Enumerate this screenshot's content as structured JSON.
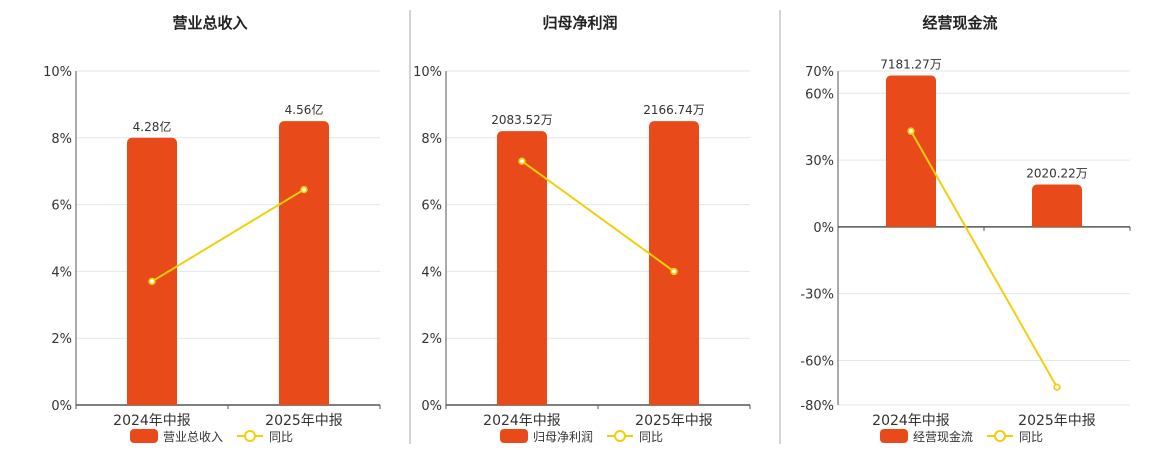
{
  "colors": {
    "bar": "#E84B19",
    "line": "#F2CF0E",
    "divider": "#A8A8A8",
    "grid": "#E3E6EE",
    "axis": "#555555",
    "text": "#333333"
  },
  "legend": {
    "bar_icon": "rounded-rect",
    "line_icon": "circle-line"
  },
  "chart_data": [
    {
      "type": "bar",
      "title": "营业总收入",
      "categories": [
        "2024年中报",
        "2025年中报"
      ],
      "series": [
        {
          "name": "营业总收入",
          "type": "bar",
          "values": [
            8.0,
            8.5
          ],
          "labels": [
            "4.28亿",
            "4.56亿"
          ]
        },
        {
          "name": "同比",
          "type": "line",
          "values": [
            3.7,
            6.45
          ]
        }
      ],
      "y_ticks": [
        "10%",
        "8%",
        "6%",
        "4%",
        "2%",
        "0%"
      ],
      "ylim": [
        0,
        10
      ],
      "grid": true,
      "legend_position": "bottom"
    },
    {
      "type": "bar",
      "title": "归母净利润",
      "categories": [
        "2024年中报",
        "2025年中报"
      ],
      "series": [
        {
          "name": "归母净利润",
          "type": "bar",
          "values": [
            8.2,
            8.5
          ],
          "labels": [
            "2083.52万",
            "2166.74万"
          ]
        },
        {
          "name": "同比",
          "type": "line",
          "values": [
            7.3,
            4.0
          ]
        }
      ],
      "y_ticks": [
        "10%",
        "8%",
        "6%",
        "4%",
        "2%",
        "0%"
      ],
      "ylim": [
        0,
        10
      ],
      "grid": true,
      "legend_position": "bottom"
    },
    {
      "type": "bar",
      "title": "经营现金流",
      "categories": [
        "2024年中报",
        "2025年中报"
      ],
      "series": [
        {
          "name": "经营现金流",
          "type": "bar",
          "values": [
            68,
            19
          ],
          "labels": [
            "7181.27万",
            "2020.22万"
          ]
        },
        {
          "name": "同比",
          "type": "line",
          "values": [
            43,
            -72
          ]
        }
      ],
      "y_ticks": [
        "70%",
        "60%",
        "30%",
        "0%",
        "-30%",
        "-60%",
        "-80%"
      ],
      "ylim": [
        -80,
        70
      ],
      "grid": true,
      "legend_position": "bottom"
    }
  ]
}
